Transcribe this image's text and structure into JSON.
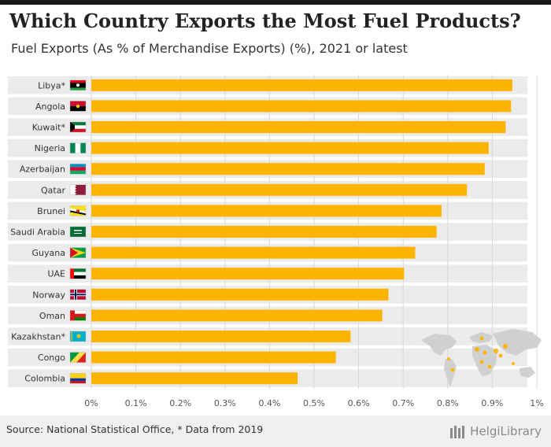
{
  "header": {
    "title": "Which Country Exports the Most Fuel Products?",
    "subtitle": "Fuel Exports (As % of Merchandise Exports) (%), 2021 or latest"
  },
  "footer": {
    "source": "Source: National Statistical Office, * Data from 2019",
    "brand": "HelgiLibrary"
  },
  "colors": {
    "bar": "#FDB400",
    "row_band": "#EBEBEB",
    "grid": "#D9D9D9",
    "map_land": "#CFCFCF",
    "map_highlight": "#FDB400"
  },
  "chart_data": {
    "type": "bar",
    "orientation": "horizontal",
    "categories": [
      "Libya*",
      "Angola",
      "Kuwait*",
      "Nigeria",
      "Azerbaijan",
      "Qatar",
      "Brunei",
      "Saudi Arabia",
      "Guyana",
      "UAE",
      "Norway",
      "Oman",
      "Kazakhstan*",
      "Congo",
      "Colombia"
    ],
    "values": [
      0.945,
      0.942,
      0.93,
      0.892,
      0.883,
      0.843,
      0.786,
      0.775,
      0.727,
      0.702,
      0.667,
      0.653,
      0.582,
      0.549,
      0.463
    ],
    "xlim": [
      0,
      1
    ],
    "x_ticks": [
      "0%",
      "0.1%",
      "0.2%",
      "0.3%",
      "0.4%",
      "0.5%",
      "0.6%",
      "0.7%",
      "0.8%",
      "0.9%",
      "1%"
    ],
    "grid": true,
    "legend": "none",
    "flags": [
      "libya-flag-icon",
      "angola-flag-icon",
      "kuwait-flag-icon",
      "nigeria-flag-icon",
      "azerbaijan-flag-icon",
      "qatar-flag-icon",
      "brunei-flag-icon",
      "saudi-arabia-flag-icon",
      "guyana-flag-icon",
      "uae-flag-icon",
      "norway-flag-icon",
      "oman-flag-icon",
      "kazakhstan-flag-icon",
      "congo-flag-icon",
      "colombia-flag-icon"
    ]
  }
}
